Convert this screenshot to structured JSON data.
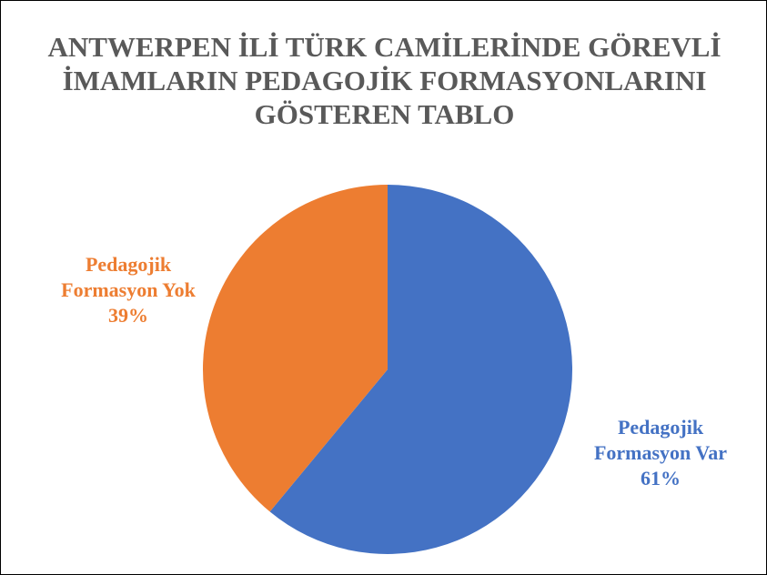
{
  "chart_data": {
    "type": "pie",
    "title": "ANTWERPEN İLİ TÜRK CAMİLERİNDE GÖREVLİ İMAMLARIN PEDAGOJİK FORMASYONLARINI GÖSTEREN TABLO",
    "categories": [
      "Pedagojik Formasyon Var",
      "Pedagojik Formasyon Yok"
    ],
    "values": [
      61,
      39
    ],
    "value_labels": [
      "61%",
      "39%"
    ],
    "colors": [
      "#4472c4",
      "#ed7d31"
    ]
  }
}
